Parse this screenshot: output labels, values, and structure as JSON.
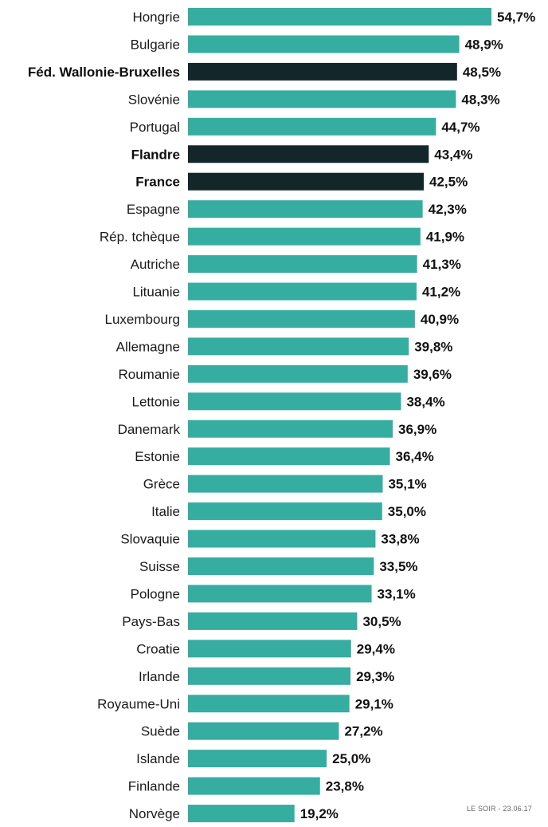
{
  "chart_data": {
    "type": "bar",
    "orientation": "horizontal",
    "categories": [
      "Hongrie",
      "Bulgarie",
      "Féd. Wallonie-Bruxelles",
      "Slovénie",
      "Portugal",
      "Flandre",
      "France",
      "Espagne",
      "Rép. tchèque",
      "Autriche",
      "Lituanie",
      "Luxembourg",
      "Allemagne",
      "Roumanie",
      "Lettonie",
      "Danemark",
      "Estonie",
      "Grèce",
      "Italie",
      "Slovaquie",
      "Suisse",
      "Pologne",
      "Pays-Bas",
      "Croatie",
      "Irlande",
      "Royaume-Uni",
      "Suède",
      "Islande",
      "Finlande",
      "Norvège"
    ],
    "values": [
      54.7,
      48.9,
      48.5,
      48.3,
      44.7,
      43.4,
      42.5,
      42.3,
      41.9,
      41.3,
      41.2,
      40.9,
      39.8,
      39.6,
      38.4,
      36.9,
      36.4,
      35.1,
      35.0,
      33.8,
      33.5,
      33.1,
      30.5,
      29.4,
      29.3,
      29.1,
      27.2,
      25.0,
      23.8,
      19.2
    ],
    "value_labels": [
      "54,7%",
      "48,9%",
      "48,5%",
      "48,3%",
      "44,7%",
      "43,4%",
      "42,5%",
      "42,3%",
      "41,9%",
      "41,3%",
      "41,2%",
      "40,9%",
      "39,8%",
      "39,6%",
      "38,4%",
      "36,9%",
      "36,4%",
      "35,1%",
      "35,0%",
      "33,8%",
      "33,5%",
      "33,1%",
      "30,5%",
      "29,4%",
      "29,3%",
      "29,1%",
      "27,2%",
      "25,0%",
      "23,8%",
      "19,2%"
    ],
    "highlighted": [
      "Féd. Wallonie-Bruxelles",
      "Flandre",
      "France"
    ],
    "xlim": [
      0,
      54.7
    ],
    "grid": false,
    "colors": {
      "bar": "#36ada1",
      "highlight": "#13272b"
    }
  },
  "credit": "LE SOIR - 23.06.17"
}
